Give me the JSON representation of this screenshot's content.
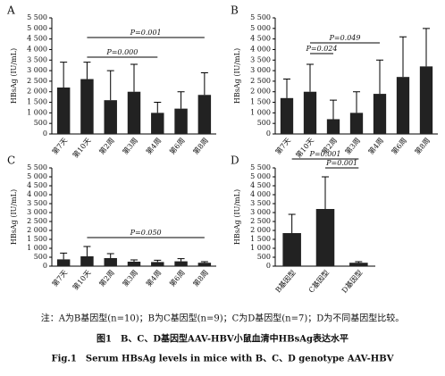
{
  "chart_data": [
    {
      "type": "bar",
      "label": "A",
      "y_label": "HBsAg (IU/mL)",
      "categories": [
        "第7天",
        "第10天",
        "第2周",
        "第3周",
        "第4周",
        "第6周",
        "第8周"
      ],
      "values": [
        2200,
        2600,
        1600,
        2000,
        1000,
        1200,
        1850
      ],
      "errors": [
        1200,
        800,
        1400,
        1300,
        500,
        800,
        1050
      ],
      "color": "#222222",
      "ylim": [
        0,
        5500
      ],
      "yticks": [
        0,
        500,
        {
          "value": 1000,
          "label": "1 000"
        },
        {
          "value": 1500,
          "label": "1 500"
        },
        {
          "value": 2000,
          "label": "2 000"
        },
        {
          "value": 2500,
          "label": "2 500"
        },
        {
          "value": 3000,
          "label": "3 000"
        },
        {
          "value": 3500,
          "label": "3 500"
        },
        {
          "value": 4000,
          "label": "4 000"
        },
        {
          "value": 4500,
          "label": "4 500"
        },
        {
          "value": 5000,
          "label": "5 000"
        },
        {
          "value": 5500,
          "label": "5 500"
        }
      ],
      "annotations": [
        "P=0.001",
        "P=0.000"
      ]
    },
    {
      "type": "bar",
      "label": "B",
      "y_label": "HBsAg (IU/mL)",
      "categories": [
        "第7天",
        "第10天",
        "第2周",
        "第3周",
        "第4周",
        "第6周",
        "第8周"
      ],
      "values": [
        1700,
        2000,
        700,
        1000,
        1900,
        2700,
        3200
      ],
      "errors": [
        900,
        1300,
        900,
        1000,
        1600,
        1900,
        1800
      ],
      "color": "#222222",
      "ylim": [
        0,
        5500
      ],
      "yticks": [
        0,
        500,
        {
          "value": 1000,
          "label": "1 000"
        },
        {
          "value": 1500,
          "label": "1 500"
        },
        {
          "value": 2000,
          "label": "2 000"
        },
        {
          "value": 2500,
          "label": "2 500"
        },
        {
          "value": 3000,
          "label": "3 000"
        },
        {
          "value": 3500,
          "label": "3 500"
        },
        {
          "value": 4000,
          "label": "4 000"
        },
        {
          "value": 4500,
          "label": "4 500"
        },
        {
          "value": 5000,
          "label": "5 000"
        },
        {
          "value": 5500,
          "label": "5 500"
        }
      ],
      "annotations": [
        "P=0.024",
        "P=0.049"
      ]
    },
    {
      "type": "bar",
      "label": "C",
      "y_label": "HBsAg (IU/mL)",
      "categories": [
        "第7天",
        "第10天",
        "第2周",
        "第3周",
        "第4周",
        "第6周",
        "第8周"
      ],
      "values": [
        380,
        550,
        450,
        250,
        230,
        270,
        190
      ],
      "errors": [
        350,
        550,
        250,
        100,
        100,
        150,
        60
      ],
      "color": "#222222",
      "ylim": [
        0,
        5500
      ],
      "yticks": [
        0,
        500,
        {
          "value": 1000,
          "label": "1 000"
        },
        {
          "value": 1500,
          "label": "1 500"
        },
        {
          "value": 2000,
          "label": "2 000"
        },
        {
          "value": 2500,
          "label": "2 500"
        },
        {
          "value": 3000,
          "label": "3 000"
        },
        {
          "value": 3500,
          "label": "3 500"
        },
        {
          "value": 4000,
          "label": "4 000"
        },
        {
          "value": 4500,
          "label": "4 500"
        },
        {
          "value": 5000,
          "label": "5 000"
        },
        {
          "value": 5500,
          "label": "5 500"
        }
      ],
      "annotations": [
        "P=0.050"
      ]
    },
    {
      "type": "bar",
      "label": "D",
      "y_label": "HBsAg (IU/mL)",
      "categories": [
        "B基因型",
        "C基因型",
        "D基因型"
      ],
      "values": [
        1850,
        3200,
        190
      ],
      "errors": [
        1050,
        1800,
        60
      ],
      "color": "#222222",
      "ylim": [
        0,
        5500
      ],
      "yticks": [
        0,
        500,
        {
          "value": 1000,
          "label": "1 000"
        },
        {
          "value": 1500,
          "label": "1 500"
        },
        {
          "value": 2000,
          "label": "2 000"
        },
        {
          "value": 2500,
          "label": "2 500"
        },
        {
          "value": 3000,
          "label": "3 000"
        },
        {
          "value": 3500,
          "label": "3 500"
        },
        {
          "value": 4000,
          "label": "4 000"
        },
        {
          "value": 4500,
          "label": "4 500"
        },
        {
          "value": 5000,
          "label": "5 000"
        },
        {
          "value": 5500,
          "label": "5 500"
        }
      ],
      "annotations": [
        "P=0.001",
        "P=0.001"
      ]
    }
  ],
  "note": "注：A为B基因型(n=10)；B为C基因型(n=9)；C为D基因型(n=7)；D为不同基因型比较。",
  "caption_cn": "图1　B、C、D基因型AAV-HBV小鼠血清中HBsAg表达水平",
  "caption_en": "Fig.1　Serum HBsAg levels in mice with B、C、D genotype AAV-HBV"
}
